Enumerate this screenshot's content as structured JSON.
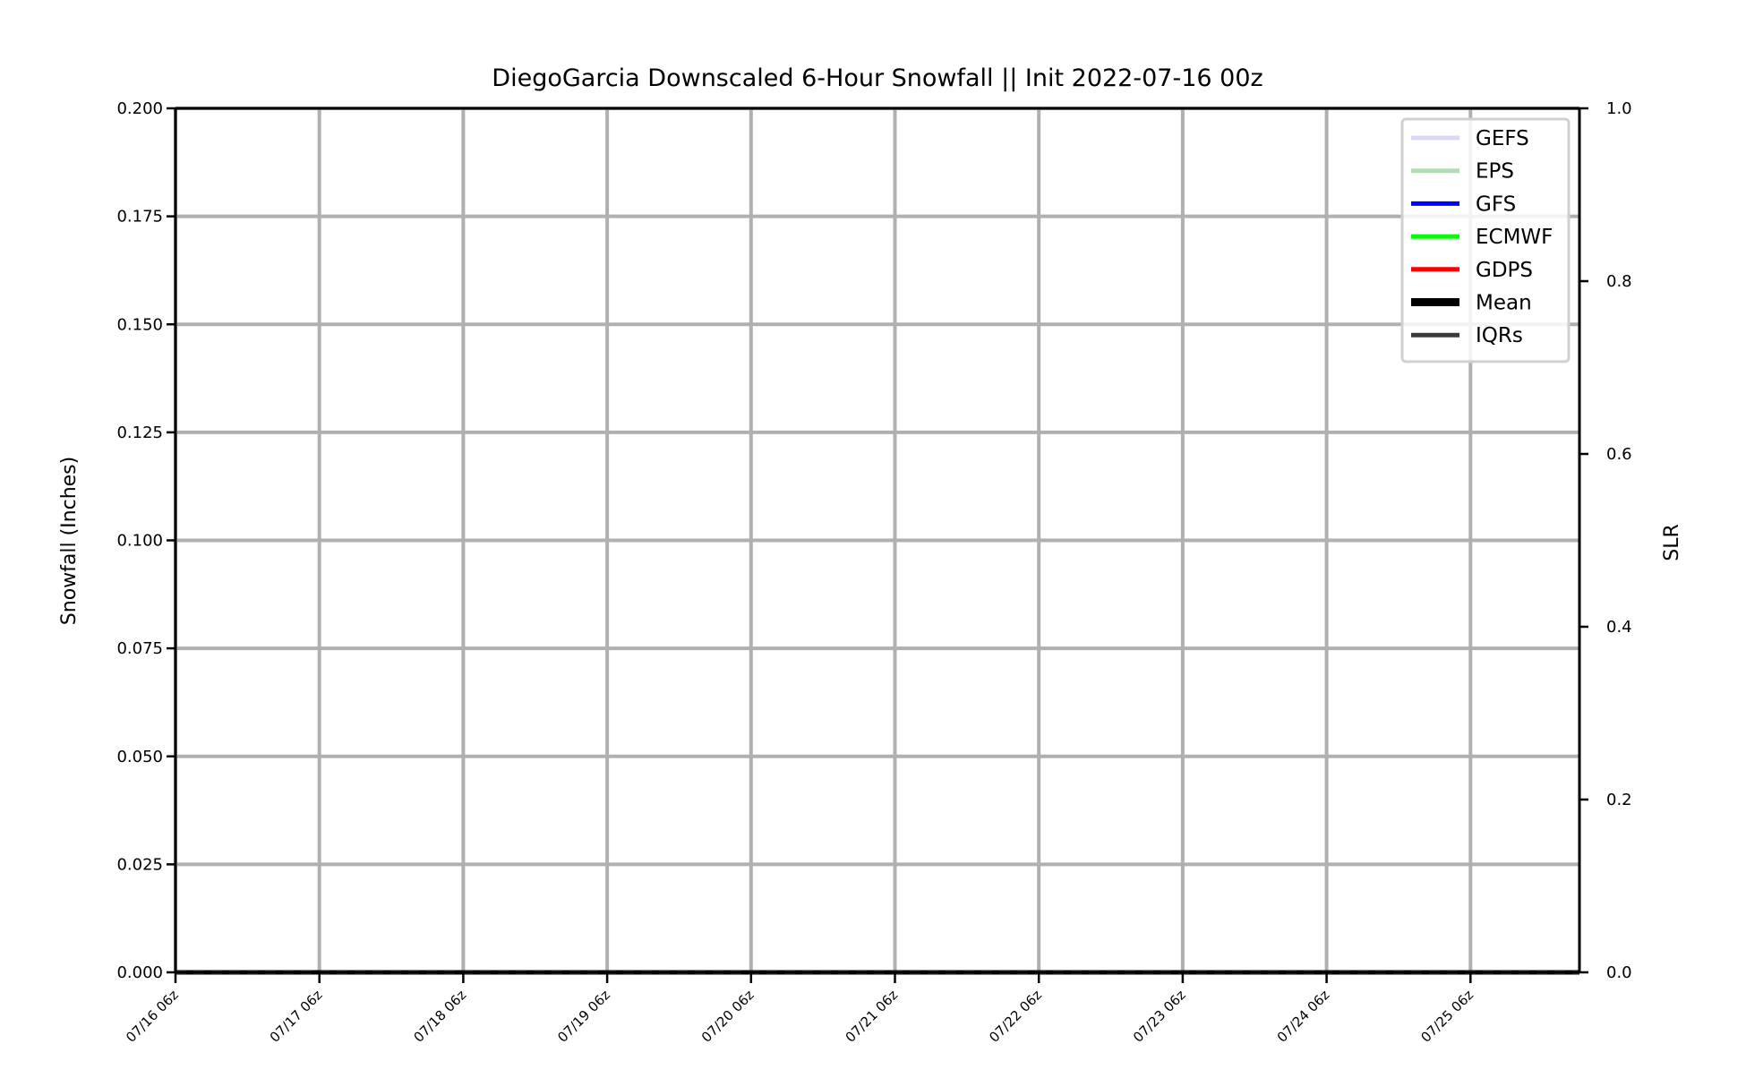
{
  "chart_data": {
    "type": "line",
    "title": "DiegoGarcia Downscaled 6-Hour Snowfall || Init 2022-07-16 00z",
    "ylabel": "Snowfall (Inches)",
    "y2label": "SLR",
    "ylim": [
      0,
      0.2
    ],
    "y2lim": [
      0,
      1.0
    ],
    "yticks": [
      "0.000",
      "0.025",
      "0.050",
      "0.075",
      "0.100",
      "0.125",
      "0.150",
      "0.175",
      "0.200"
    ],
    "y2ticks": [
      "0.0",
      "0.2",
      "0.4",
      "0.6",
      "0.8",
      "1.0"
    ],
    "x": [
      "07/16 06z",
      "07/17 06z",
      "07/18 06z",
      "07/19 06z",
      "07/20 06z",
      "07/21 06z",
      "07/22 06z",
      "07/23 06z",
      "07/24 06z",
      "07/25 06z"
    ],
    "grid": true,
    "legend_position": "top-right",
    "series": [
      {
        "name": "GEFS",
        "color": "#d8d8f4",
        "values": [
          0,
          0,
          0,
          0,
          0,
          0,
          0,
          0,
          0,
          0
        ]
      },
      {
        "name": "EPS",
        "color": "#b4dcb4",
        "values": [
          0,
          0,
          0,
          0,
          0,
          0,
          0,
          0,
          0,
          0
        ]
      },
      {
        "name": "GFS",
        "color": "#0000ff",
        "values": [
          0,
          0,
          0,
          0,
          0,
          0,
          0,
          0,
          0,
          0
        ]
      },
      {
        "name": "ECMWF",
        "color": "#00ff00",
        "values": [
          0,
          0,
          0,
          0,
          0,
          0,
          0,
          0,
          0,
          0
        ]
      },
      {
        "name": "GDPS",
        "color": "#ff0000",
        "values": [
          0,
          0,
          0,
          0,
          0,
          0,
          0,
          0,
          0,
          0
        ]
      },
      {
        "name": "Mean",
        "color": "#000000",
        "values": [
          0,
          0,
          0,
          0,
          0,
          0,
          0,
          0,
          0,
          0
        ]
      },
      {
        "name": "IQRs",
        "color": "#3a3a3a",
        "values": [
          0,
          0,
          0,
          0,
          0,
          0,
          0,
          0,
          0,
          0
        ]
      }
    ]
  }
}
